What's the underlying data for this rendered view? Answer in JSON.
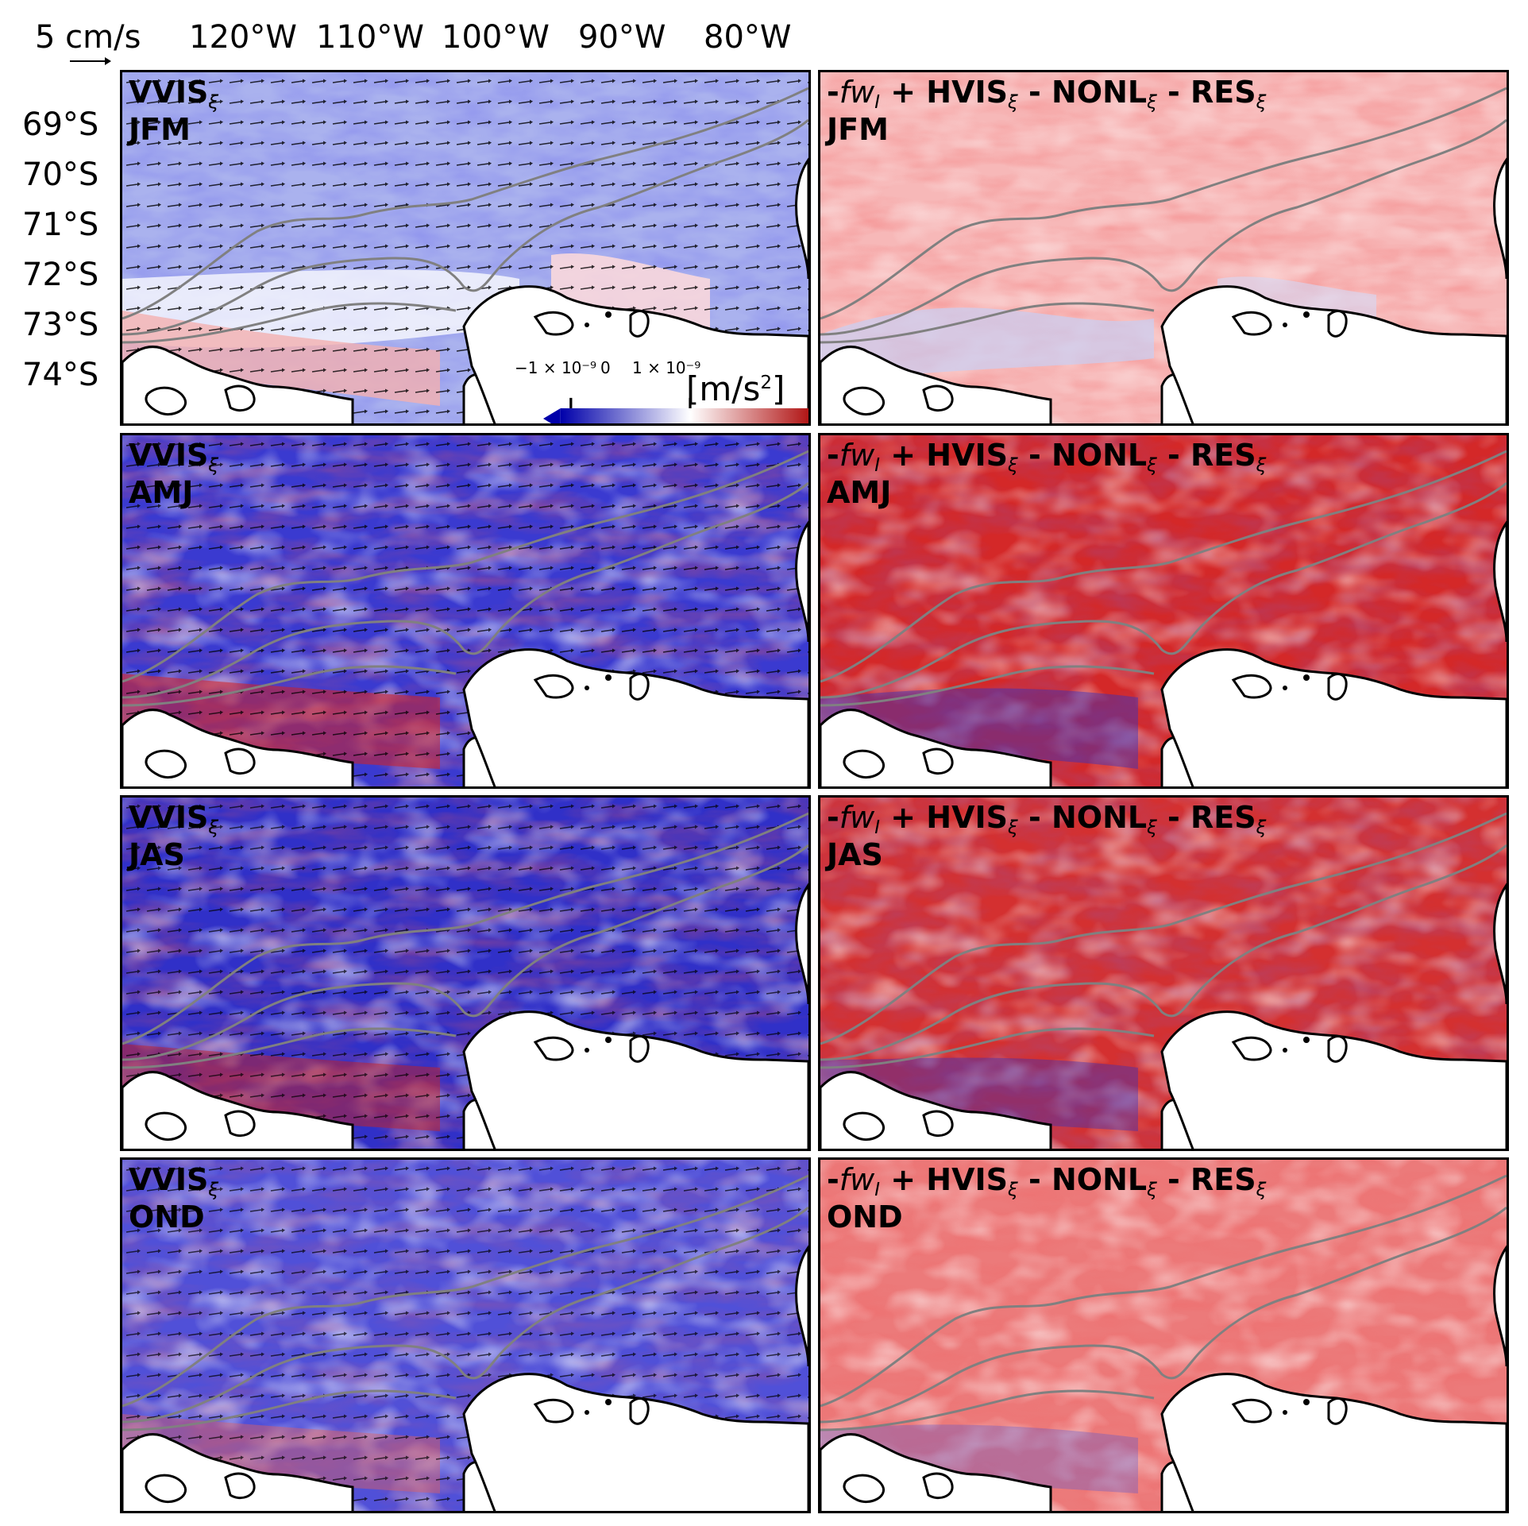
{
  "scale": {
    "label": "5 cm/s"
  },
  "lon_labels": [
    "120°W",
    "110°W",
    "100°W",
    "90°W",
    "80°W"
  ],
  "lat_labels": [
    "69°S",
    "70°S",
    "71°S",
    "72°S",
    "73°S",
    "74°S"
  ],
  "colorbar": {
    "ticks": [
      "−1 × 10⁻⁹",
      "0",
      "1 × 10⁻⁹"
    ],
    "unit_prefix": "[m/s",
    "unit_exp": "2",
    "unit_suffix": "]",
    "colors": {
      "negative": "#1a1acc",
      "neutral": "#ffffff",
      "positive": "#cc0000"
    }
  },
  "rows": [
    {
      "season": "JFM",
      "left": {
        "term": "VVIS",
        "sub": "ξ"
      },
      "right": {
        "t1": "-",
        "fw": "fw",
        "fw_sub": "I",
        "rest": " + HVIS",
        "sub1": "ξ",
        "rest2": " - NONL",
        "sub2": "ξ",
        "rest3": " - RES",
        "sub3": "ξ"
      }
    },
    {
      "season": "AMJ",
      "left": {
        "term": "VVIS",
        "sub": "ξ"
      },
      "right": {
        "t1": "-",
        "fw": "fw",
        "fw_sub": "I",
        "rest": " + HVIS",
        "sub1": "ξ",
        "rest2": " - NONL",
        "sub2": "ξ",
        "rest3": " - RES",
        "sub3": "ξ"
      }
    },
    {
      "season": "JAS",
      "left": {
        "term": "VVIS",
        "sub": "ξ"
      },
      "right": {
        "t1": "-",
        "fw": "fw",
        "fw_sub": "I",
        "rest": " + HVIS",
        "sub1": "ξ",
        "rest2": " - NONL",
        "sub2": "ξ",
        "rest3": " - RES",
        "sub3": "ξ"
      }
    },
    {
      "season": "OND",
      "left": {
        "term": "VVIS",
        "sub": "ξ"
      },
      "right": {
        "t1": "-",
        "fw": "fw",
        "fw_sub": "I",
        "rest": " + HVIS",
        "sub1": "ξ",
        "rest2": " - NONL",
        "sub2": "ξ",
        "rest3": " - RES",
        "sub3": "ξ"
      }
    }
  ]
}
